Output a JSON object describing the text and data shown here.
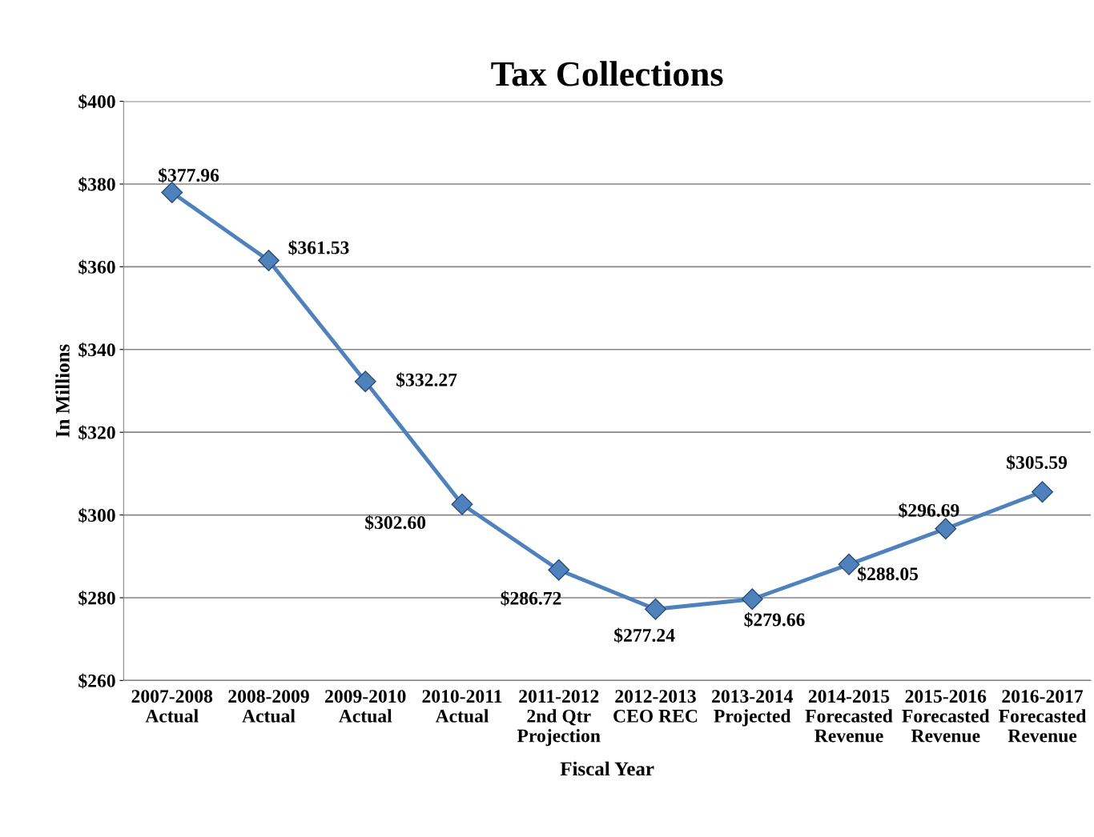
{
  "chart_data": {
    "type": "line",
    "title": "Tax Collections",
    "xlabel": "Fiscal Year",
    "ylabel": "In Millions",
    "categories": [
      "2007-2008\nActual",
      "2008-2009\nActual",
      "2009-2010\nActual",
      "2010-2011\nActual",
      "2011-2012\n2nd Qtr\nProjection",
      "2012-2013\nCEO REC",
      "2013-2014\nProjected",
      "2014-2015\nForecasted\nRevenue",
      "2015-2016\nForecasted\nRevenue",
      "2016-2017\nForecasted\nRevenue"
    ],
    "series": [
      {
        "color": "#4f81bd",
        "values": [
          377.96,
          361.53,
          332.27,
          302.6,
          286.72,
          277.24,
          279.66,
          288.05,
          296.69,
          305.59
        ],
        "value_labels": [
          "$377.96",
          "$361.53",
          "$332.27",
          "$302.60",
          "$286.72",
          "$277.24",
          "$279.66",
          "$288.05",
          "$296.69",
          "$305.59"
        ]
      }
    ],
    "ylim": [
      260,
      400
    ],
    "yticks": [
      {
        "value": 260,
        "label": "$260"
      },
      {
        "value": 280,
        "label": "$280"
      },
      {
        "value": 300,
        "label": "$300"
      },
      {
        "value": 320,
        "label": "$320"
      },
      {
        "value": 340,
        "label": "$340"
      },
      {
        "value": 360,
        "label": "$360"
      },
      {
        "value": 380,
        "label": "$380"
      },
      {
        "value": 400,
        "label": "$400"
      }
    ],
    "grid": "y",
    "marker": "diamond",
    "line_style": "solid",
    "legend": false
  }
}
